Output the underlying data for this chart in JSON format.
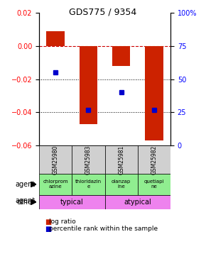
{
  "title": "GDS775 / 9354",
  "samples": [
    "GSM25980",
    "GSM25983",
    "GSM25981",
    "GSM25982"
  ],
  "log_ratios": [
    0.009,
    -0.047,
    -0.012,
    -0.057
  ],
  "percentile_ranks": [
    55,
    27,
    40,
    27
  ],
  "agents": [
    "chlorprom\nazine",
    "thioridazin\ne",
    "olanzap\nine",
    "quetiapi\nne"
  ],
  "other_groups": [
    [
      "typical",
      2
    ],
    [
      "atypical",
      2
    ]
  ],
  "ylim_left": [
    -0.06,
    0.02
  ],
  "ylim_right": [
    0,
    100
  ],
  "bar_color": "#cc2200",
  "dot_color": "#0000cc",
  "zero_line_color": "#cc0000",
  "bg_color": "#ffffff",
  "gray_color": "#d0d0d0",
  "green_color": "#90ee90",
  "magenta_color": "#ee82ee"
}
